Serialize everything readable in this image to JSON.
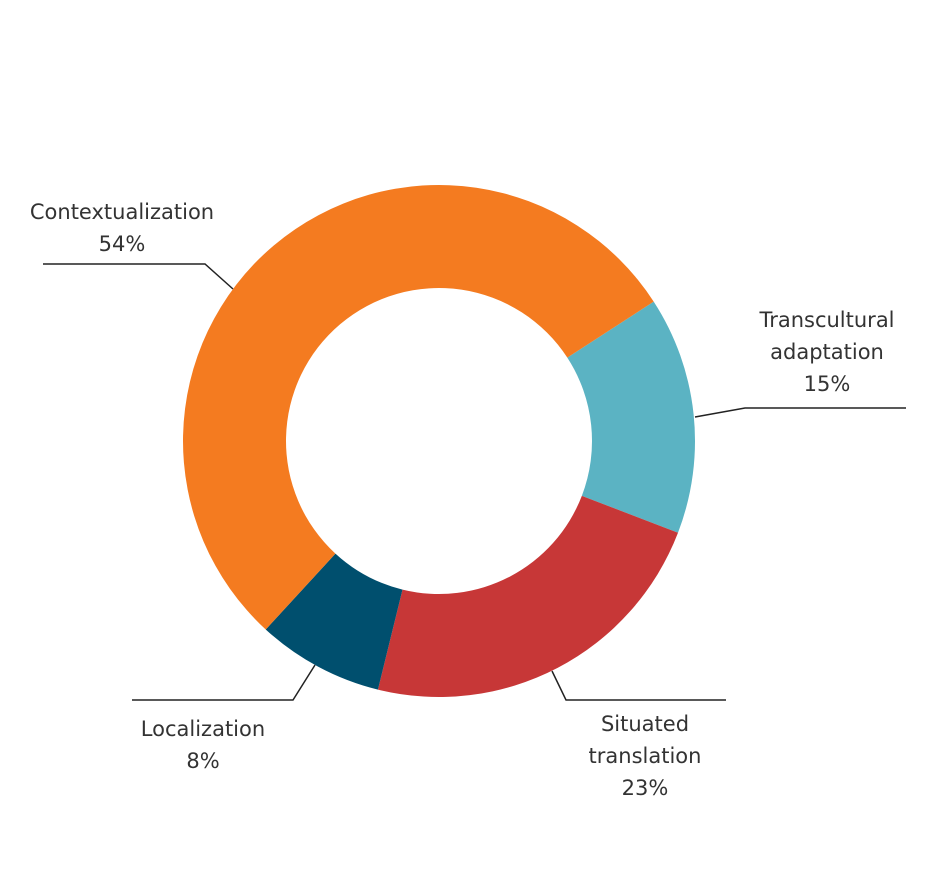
{
  "chart_data": {
    "type": "pie",
    "donut": true,
    "title": "",
    "slices": [
      {
        "label": [
          "Transcultural",
          "adaptation"
        ],
        "value": 15,
        "display": "15%",
        "color": "#5BB3C3"
      },
      {
        "label": [
          "Situated",
          "translation"
        ],
        "value": 23,
        "display": "23%",
        "color": "#C73737"
      },
      {
        "label": [
          "Localization"
        ],
        "value": 8,
        "display": "8%",
        "color": "#004F6E"
      },
      {
        "label": [
          "Contextualization"
        ],
        "value": 54,
        "display": "54%",
        "color": "#F47B20"
      }
    ],
    "legend": "none",
    "labels": "outside with leader lines"
  }
}
